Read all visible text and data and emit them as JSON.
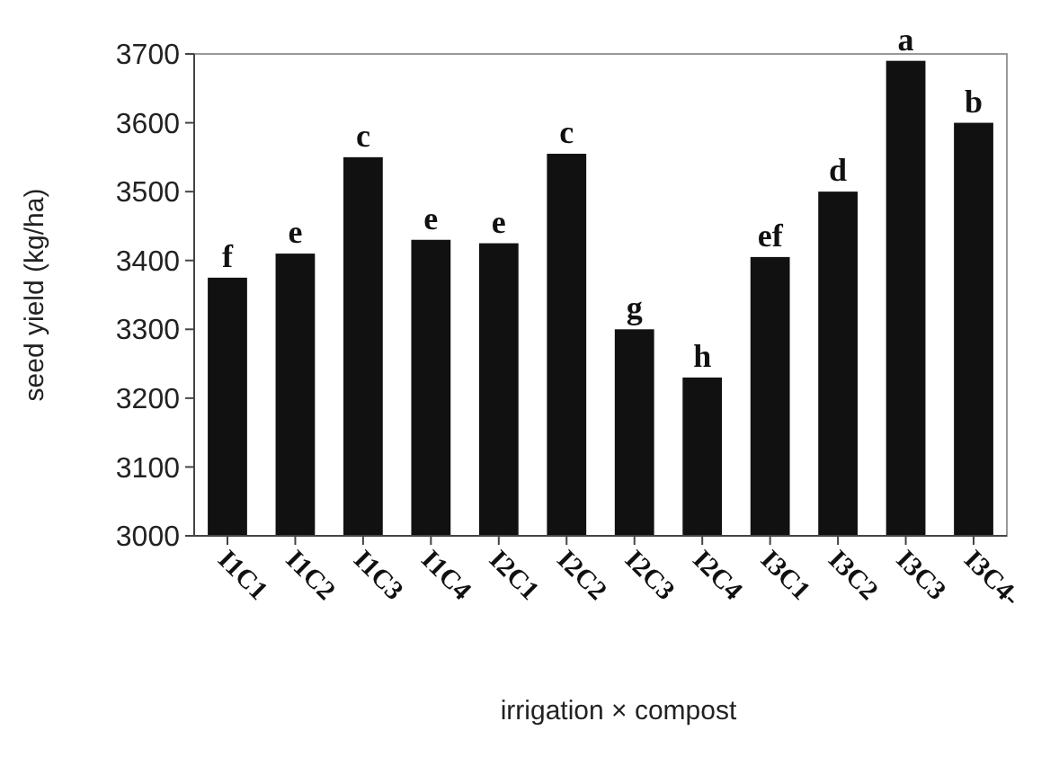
{
  "chart_data": {
    "type": "bar",
    "xlabel": "irrigation × compost",
    "ylabel": "seed yield (kg/ha)",
    "categories": [
      "I1C1",
      "I1C2",
      "I1C3",
      "I1C4",
      "I2C1",
      "I2C2",
      "I2C3",
      "I2C4",
      "I3C1",
      "I3C2",
      "I3C3",
      "I3C4-"
    ],
    "values": [
      3375,
      3410,
      3550,
      3430,
      3425,
      3555,
      3300,
      3230,
      3405,
      3500,
      3690,
      3600
    ],
    "color": "#111111",
    "ylim": [
      3000,
      3700
    ],
    "yticks": [
      3000,
      3100,
      3200,
      3300,
      3400,
      3500,
      3600,
      3700
    ],
    "grid": false,
    "annotations": [
      {
        "text": "f",
        "x": "I1C1",
        "y": 3375
      },
      {
        "text": "e",
        "x": "I1C2",
        "y": 3410
      },
      {
        "text": "c",
        "x": "I1C3",
        "y": 3550
      },
      {
        "text": "e",
        "x": "I1C4",
        "y": 3430
      },
      {
        "text": "e",
        "x": "I2C1",
        "y": 3425
      },
      {
        "text": "c",
        "x": "I2C2",
        "y": 3555
      },
      {
        "text": "g",
        "x": "I2C3",
        "y": 3300
      },
      {
        "text": "h",
        "x": "I2C4",
        "y": 3230
      },
      {
        "text": "ef",
        "x": "I3C1",
        "y": 3405
      },
      {
        "text": "d",
        "x": "I3C2",
        "y": 3500
      },
      {
        "text": "a",
        "x": "I3C3",
        "y": 3690
      },
      {
        "text": "b",
        "x": "I3C4-",
        "y": 3600
      }
    ]
  }
}
